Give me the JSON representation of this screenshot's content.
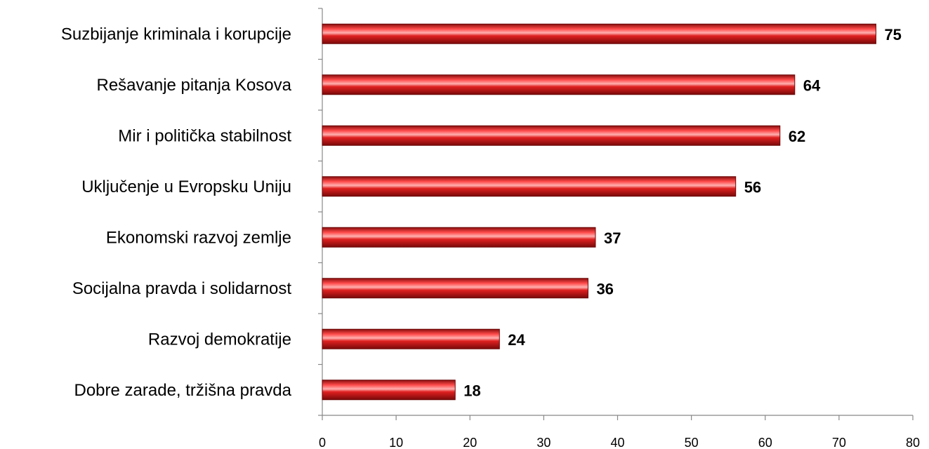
{
  "chart_data": {
    "type": "bar",
    "orientation": "horizontal",
    "categories": [
      "Suzbijanje kriminala i korupcije",
      "Rešavanje pitanja Kosova",
      "Mir i politička stabilnost",
      "Uključenje u Evropsku Uniju",
      "Ekonomski razvoj zemlje",
      "Socijalna pravda i solidarnost",
      "Razvoj demokratije",
      "Dobre zarade, tržišna pravda"
    ],
    "values": [
      75,
      64,
      62,
      56,
      37,
      36,
      24,
      18
    ],
    "color": "#d41f1f",
    "xlim": [
      0,
      80
    ],
    "xticks": [
      0,
      10,
      20,
      30,
      40,
      50,
      60,
      70,
      80
    ]
  }
}
